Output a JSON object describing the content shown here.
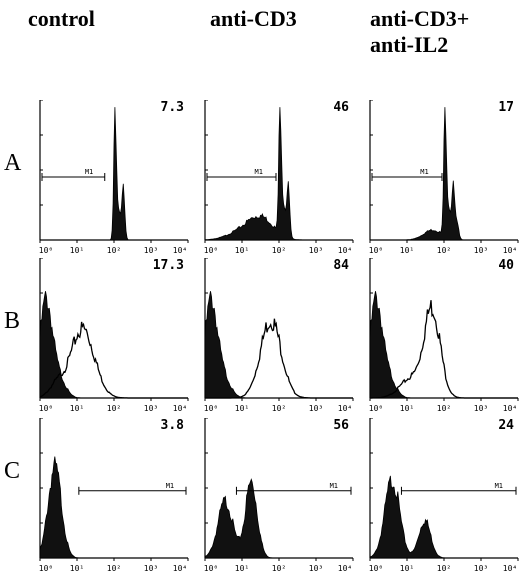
{
  "columns": [
    "control",
    "anti-CD3",
    "anti-CD3+\nanti-IL2"
  ],
  "column_lines": [
    [
      "control"
    ],
    [
      "anti-CD3"
    ],
    [
      "anti-CD3+",
      "anti-IL2"
    ]
  ],
  "rows": [
    "A",
    "B",
    "C"
  ],
  "values": [
    [
      "7.3",
      "46",
      "17"
    ],
    [
      "17.3",
      "84",
      "40"
    ],
    [
      "3.8",
      "56",
      "24"
    ]
  ],
  "axis_ticks": [
    "10⁰",
    "10¹",
    "10²",
    "10³",
    "10⁴"
  ],
  "marker_label": "M1",
  "colors": {
    "ink": "#000000",
    "fill": "#111111",
    "background": "#ffffff"
  },
  "chart_data": {
    "type": "histogram-grid",
    "xscale": "log",
    "xlim": [
      1,
      10000
    ],
    "panels": [
      {
        "row": "A",
        "column": "control",
        "value": 7.3,
        "marker": "M1"
      },
      {
        "row": "A",
        "column": "anti-CD3",
        "value": 46,
        "marker": "M1"
      },
      {
        "row": "A",
        "column": "anti-CD3+ anti-IL2",
        "value": 17,
        "marker": "M1"
      },
      {
        "row": "B",
        "column": "control",
        "value": 17.3
      },
      {
        "row": "B",
        "column": "anti-CD3",
        "value": 84
      },
      {
        "row": "B",
        "column": "anti-CD3+ anti-IL2",
        "value": 40
      },
      {
        "row": "C",
        "column": "control",
        "value": 3.8,
        "marker": "M1"
      },
      {
        "row": "C",
        "column": "anti-CD3",
        "value": 56,
        "marker": "M1"
      },
      {
        "row": "C",
        "column": "anti-CD3+ anti-IL2",
        "value": 24,
        "marker": "M1"
      }
    ]
  }
}
